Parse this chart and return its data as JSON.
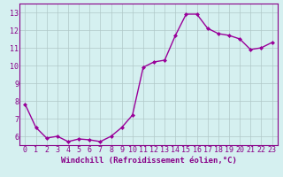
{
  "x": [
    0,
    1,
    2,
    3,
    4,
    5,
    6,
    7,
    8,
    9,
    10,
    11,
    12,
    13,
    14,
    15,
    16,
    17,
    18,
    19,
    20,
    21,
    22,
    23
  ],
  "y": [
    7.8,
    6.5,
    5.9,
    6.0,
    5.7,
    5.85,
    5.8,
    5.7,
    6.0,
    6.5,
    7.2,
    9.9,
    10.2,
    10.3,
    11.7,
    12.9,
    12.9,
    12.1,
    11.8,
    11.7,
    11.5,
    10.9,
    11.0,
    11.3
  ],
  "line_color": "#990099",
  "marker": "D",
  "marker_size": 2.0,
  "linewidth": 1.0,
  "xlabel": "Windchill (Refroidissement éolien,°C)",
  "xlabel_fontsize": 6.5,
  "ylim": [
    5.5,
    13.5
  ],
  "xlim": [
    -0.5,
    23.5
  ],
  "yticks": [
    6,
    7,
    8,
    9,
    10,
    11,
    12,
    13
  ],
  "xticks": [
    0,
    1,
    2,
    3,
    4,
    5,
    6,
    7,
    8,
    9,
    10,
    11,
    12,
    13,
    14,
    15,
    16,
    17,
    18,
    19,
    20,
    21,
    22,
    23
  ],
  "grid_color": "#b0c8c8",
  "background_color": "#d5f0f0",
  "tick_fontsize": 6.0,
  "tick_color": "#880088",
  "spine_color": "#880088",
  "label_color": "#880088"
}
